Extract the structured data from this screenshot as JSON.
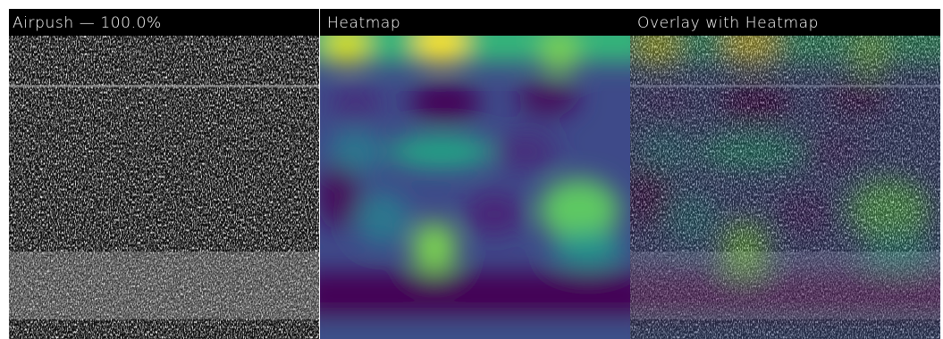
{
  "panels": [
    {
      "title": "Airpush — 100.0%"
    },
    {
      "title": "Heatmap"
    },
    {
      "title": "Overlay with Heatmap"
    }
  ]
}
